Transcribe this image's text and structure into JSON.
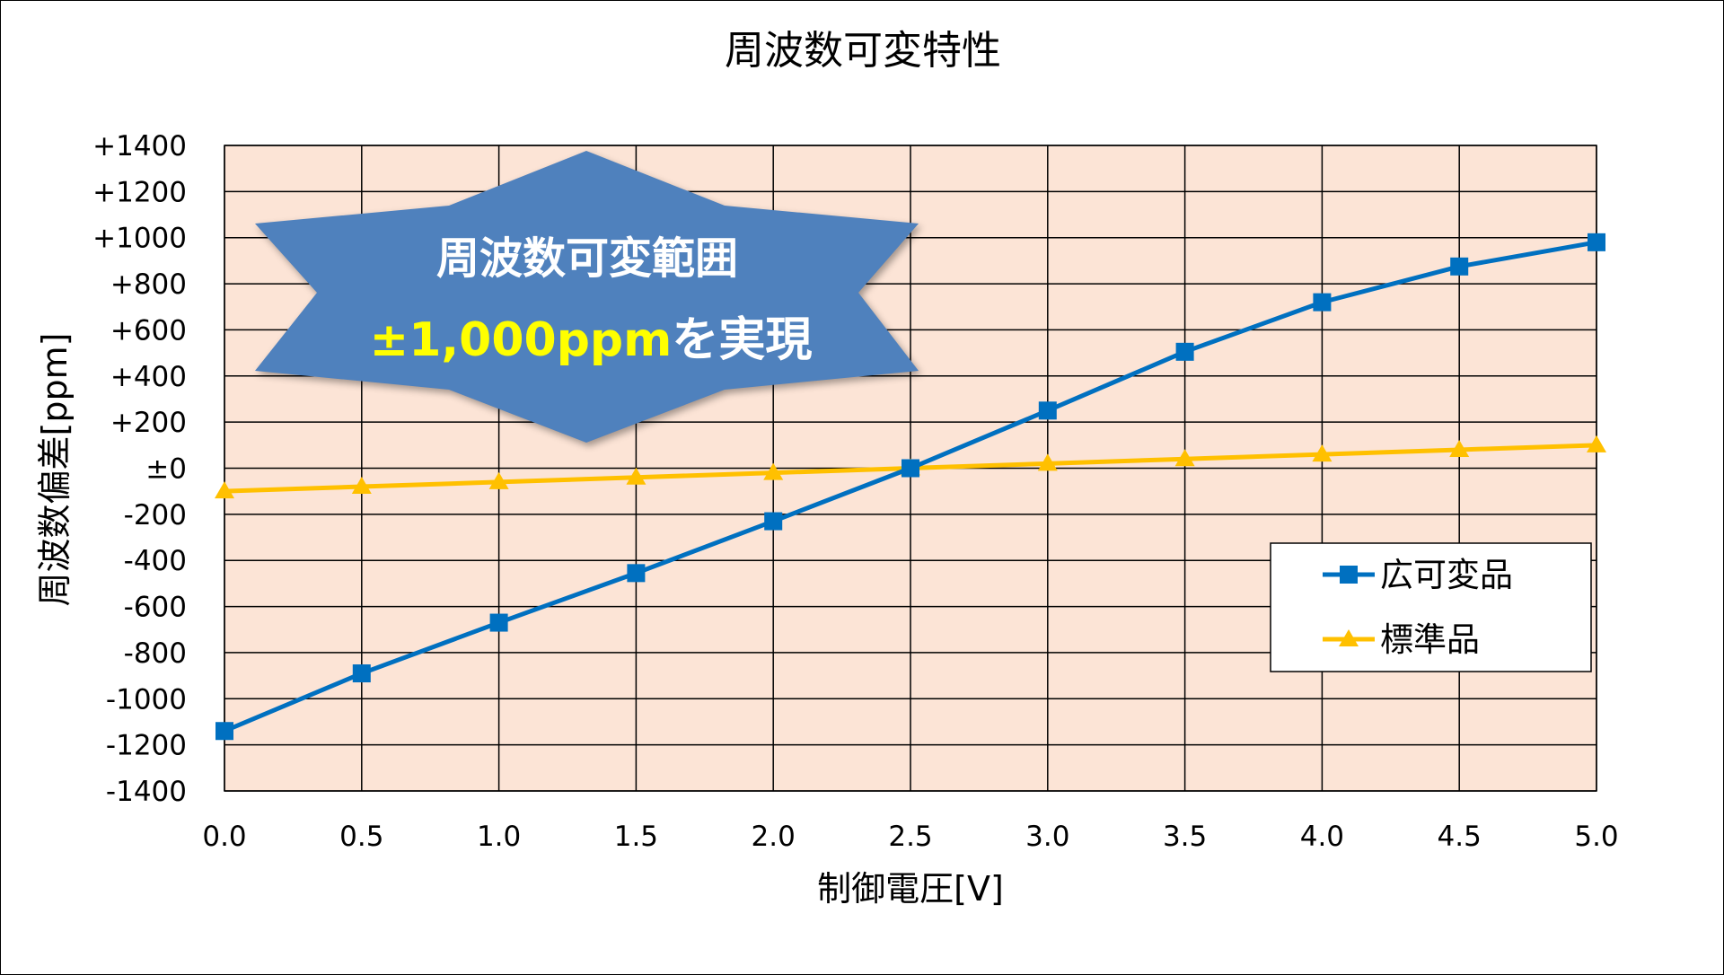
{
  "chart_data": {
    "type": "line",
    "title": "周波数可変特性",
    "xlabel": "制御電圧[V]",
    "ylabel": "周波数偏差[ppm]",
    "xlim": [
      0,
      5
    ],
    "ylim": [
      -1400,
      1400
    ],
    "x_ticks": [
      0,
      0.5,
      1,
      1.5,
      2,
      2.5,
      3,
      3.5,
      4,
      4.5,
      5
    ],
    "x_tick_labels": [
      "0.0",
      "0.5",
      "1.0",
      "1.5",
      "2.0",
      "2.5",
      "3.0",
      "3.5",
      "4.0",
      "4.5",
      "5.0"
    ],
    "y_ticks": [
      1400,
      1200,
      1000,
      800,
      600,
      400,
      200,
      0,
      -200,
      -400,
      -600,
      -800,
      -1000,
      -1200,
      -1400
    ],
    "y_tick_labels": [
      "+1400",
      "+1200",
      "+1000",
      "+800",
      "+600",
      "+400",
      "+200",
      "±0",
      "-200",
      "-400",
      "-600",
      "-800",
      "-1000",
      "-1200",
      "-1400"
    ],
    "grid": true,
    "plot_background": "#FCE4D6",
    "legend_position": "bottom-right",
    "x": [
      0,
      0.5,
      1,
      1.5,
      2,
      2.5,
      3,
      3.5,
      4,
      4.5,
      5
    ],
    "series": [
      {
        "name": "広可変品",
        "color": "#0070C0",
        "marker": "square",
        "values": [
          -1140,
          -890,
          -670,
          -455,
          -230,
          0,
          250,
          505,
          720,
          875,
          980
        ]
      },
      {
        "name": "標準品",
        "color": "#FFC000",
        "marker": "triangle",
        "values": [
          -100,
          -80,
          -60,
          -40,
          -20,
          0,
          20,
          40,
          60,
          80,
          100
        ]
      }
    ],
    "annotations": [
      {
        "shape": "starburst",
        "fill": "#4F81BD",
        "line1": "周波数可変範囲",
        "line2_highlight": "±1,000ppm",
        "line2_rest": "を実現",
        "highlight_color": "#FFFF00",
        "text_color": "#FFFFFF"
      }
    ]
  }
}
